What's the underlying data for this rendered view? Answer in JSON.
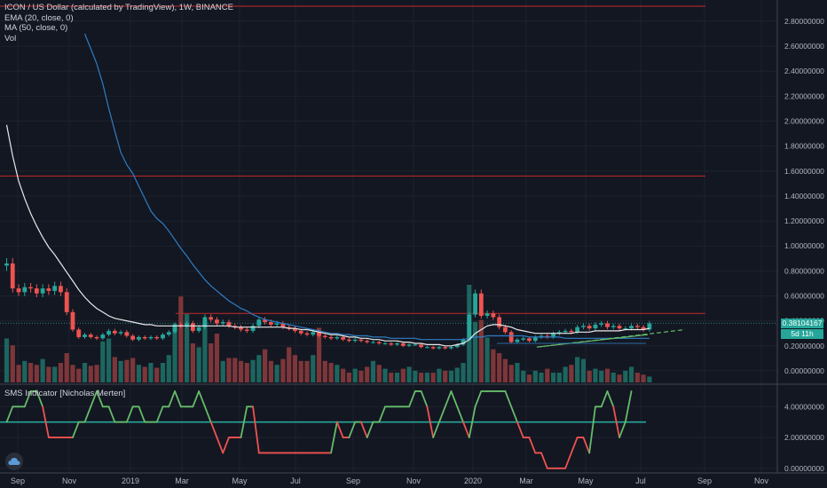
{
  "legend": {
    "title": "ICON / US Dollar (calculated by TradingView), 1W, BINANCE",
    "ema": "EMA (20, close, 0)",
    "ma": "MA (50, close, 0)",
    "vol": "Vol"
  },
  "sms_legend": "SMS Indicator [Nicholas Merten]",
  "price_badge": "0.38104167",
  "countdown_badge": "5d 11h",
  "colors": {
    "background": "#131722",
    "up": "#26a69a",
    "down": "#ef5350",
    "ema": "#e8e8e8",
    "ma": "#2e7dc4",
    "resistance": "#c62828",
    "trendline": "#66bb6a",
    "sms_up": "#66bb6a",
    "sms_down": "#ef5350",
    "sms_mid": "#26a69a"
  },
  "icons": {
    "logo": "tradingview-cloud-icon"
  },
  "chart_data": [
    {
      "type": "candlestick",
      "title": "ICON / US Dollar (calculated by TradingView), 1W, BINANCE",
      "x_ticks": [
        "Sep",
        "Nov",
        "2019",
        "Mar",
        "May",
        "Jul",
        "Sep",
        "Nov",
        "2020",
        "Mar",
        "May",
        "Jul",
        "Sep",
        "Nov"
      ],
      "y_ticks": [
        "2.80000000",
        "2.60000000",
        "2.40000000",
        "2.20000000",
        "2.00000000",
        "1.80000000",
        "1.60000000",
        "1.40000000",
        "1.20000000",
        "1.00000000",
        "0.80000000",
        "0.60000000",
        "0.40000000",
        "0.20000000",
        "0.00000000"
      ],
      "ylim": [
        -0.1,
        2.97
      ],
      "horizontal_lines": [
        2.92,
        1.56,
        0.46
      ],
      "last_price": 0.38104167,
      "close": [
        0.86,
        0.66,
        0.63,
        0.67,
        0.66,
        0.62,
        0.66,
        0.64,
        0.68,
        0.63,
        0.47,
        0.33,
        0.27,
        0.29,
        0.27,
        0.26,
        0.29,
        0.32,
        0.3,
        0.31,
        0.28,
        0.25,
        0.27,
        0.26,
        0.27,
        0.26,
        0.29,
        0.31,
        0.37,
        0.36,
        0.38,
        0.32,
        0.35,
        0.43,
        0.41,
        0.38,
        0.39,
        0.36,
        0.35,
        0.33,
        0.32,
        0.36,
        0.41,
        0.39,
        0.37,
        0.38,
        0.35,
        0.34,
        0.32,
        0.3,
        0.29,
        0.31,
        0.28,
        0.27,
        0.26,
        0.27,
        0.25,
        0.24,
        0.25,
        0.24,
        0.23,
        0.23,
        0.22,
        0.22,
        0.21,
        0.22,
        0.2,
        0.21,
        0.21,
        0.19,
        0.19,
        0.18,
        0.19,
        0.18,
        0.19,
        0.21,
        0.25,
        0.45,
        0.62,
        0.44,
        0.46,
        0.43,
        0.35,
        0.31,
        0.23,
        0.25,
        0.26,
        0.24,
        0.27,
        0.28,
        0.27,
        0.3,
        0.31,
        0.32,
        0.31,
        0.35,
        0.36,
        0.34,
        0.37,
        0.38,
        0.35,
        0.36,
        0.34,
        0.34,
        0.36,
        0.35,
        0.33,
        0.38
      ],
      "ema20": [
        1.97,
        1.72,
        1.52,
        1.38,
        1.26,
        1.16,
        1.07,
        0.99,
        0.93,
        0.86,
        0.79,
        0.72,
        0.65,
        0.59,
        0.54,
        0.5,
        0.47,
        0.44,
        0.42,
        0.41,
        0.4,
        0.39,
        0.38,
        0.37,
        0.37,
        0.36,
        0.36,
        0.36,
        0.36,
        0.36,
        0.36,
        0.36,
        0.36,
        0.36,
        0.36,
        0.36,
        0.36,
        0.36,
        0.35,
        0.35,
        0.35,
        0.35,
        0.35,
        0.35,
        0.35,
        0.35,
        0.35,
        0.34,
        0.34,
        0.33,
        0.33,
        0.32,
        0.31,
        0.3,
        0.29,
        0.29,
        0.28,
        0.27,
        0.27,
        0.26,
        0.26,
        0.25,
        0.25,
        0.24,
        0.24,
        0.24,
        0.23,
        0.23,
        0.22,
        0.22,
        0.21,
        0.21,
        0.21,
        0.2,
        0.2,
        0.21,
        0.22,
        0.25,
        0.3,
        0.33,
        0.36,
        0.37,
        0.37,
        0.36,
        0.35,
        0.33,
        0.32,
        0.31,
        0.3,
        0.3,
        0.3,
        0.3,
        0.3,
        0.3,
        0.3,
        0.31,
        0.31,
        0.31,
        0.32,
        0.32,
        0.32,
        0.32,
        0.32,
        0.33,
        0.33,
        0.33,
        0.33,
        0.34
      ],
      "ma50": [
        null,
        null,
        null,
        null,
        null,
        null,
        null,
        null,
        null,
        null,
        null,
        null,
        null,
        2.7,
        2.58,
        2.46,
        2.3,
        2.1,
        1.92,
        1.75,
        1.65,
        1.58,
        1.48,
        1.38,
        1.28,
        1.22,
        1.18,
        1.12,
        1.05,
        0.98,
        0.92,
        0.85,
        0.79,
        0.73,
        0.68,
        0.64,
        0.6,
        0.56,
        0.53,
        0.5,
        0.48,
        0.45,
        0.43,
        0.41,
        0.4,
        0.39,
        0.38,
        0.37,
        0.36,
        0.35,
        0.34,
        0.33,
        0.32,
        0.31,
        0.3,
        0.3,
        0.29,
        0.29,
        0.28,
        0.28,
        0.28,
        0.27,
        0.27,
        0.27,
        0.26,
        0.26,
        0.26,
        0.26,
        0.26,
        0.25,
        0.25,
        0.25,
        0.25,
        0.25,
        0.25,
        0.25,
        0.25,
        0.26,
        0.27,
        0.27,
        0.28,
        0.28,
        0.28,
        0.28,
        0.28,
        0.28,
        0.28,
        0.27,
        0.27,
        0.27,
        0.27,
        0.27,
        0.27,
        0.26,
        0.26,
        0.26,
        0.26,
        0.26,
        0.26,
        0.26,
        0.26,
        0.26,
        0.26,
        0.26,
        0.26,
        0.26,
        0.26,
        0.26
      ],
      "volume": [
        0.45,
        0.38,
        0.18,
        0.22,
        0.2,
        0.18,
        0.24,
        0.16,
        0.16,
        0.2,
        0.3,
        0.18,
        0.14,
        0.2,
        0.17,
        0.18,
        0.42,
        0.45,
        0.26,
        0.22,
        0.23,
        0.25,
        0.18,
        0.16,
        0.2,
        0.15,
        0.2,
        0.28,
        0.6,
        0.88,
        0.7,
        0.4,
        0.36,
        0.62,
        0.4,
        0.5,
        0.22,
        0.25,
        0.25,
        0.22,
        0.2,
        0.23,
        0.28,
        0.34,
        0.22,
        0.18,
        0.24,
        0.36,
        0.28,
        0.22,
        0.22,
        0.28,
        0.56,
        0.22,
        0.2,
        0.18,
        0.14,
        0.1,
        0.14,
        0.12,
        0.16,
        0.22,
        0.18,
        0.14,
        0.1,
        0.1,
        0.14,
        0.16,
        0.12,
        0.1,
        0.1,
        0.1,
        0.14,
        0.12,
        0.12,
        0.15,
        0.2,
        1.0,
        0.62,
        0.64,
        0.46,
        0.34,
        0.3,
        0.24,
        0.18,
        0.2,
        0.12,
        0.08,
        0.12,
        0.1,
        0.14,
        0.1,
        0.1,
        0.16,
        0.18,
        0.26,
        0.24,
        0.12,
        0.14,
        0.12,
        0.14,
        0.1,
        0.08,
        0.12,
        0.16,
        0.1,
        0.08,
        0.06
      ]
    },
    {
      "type": "line",
      "title": "SMS Indicator [Nicholas Merten]",
      "y_ticks": [
        "4.00000000",
        "2.00000000",
        "0.00000000"
      ],
      "ylim": [
        -0.3,
        5.4
      ],
      "midline": 3,
      "values": [
        3,
        4,
        4,
        4,
        5,
        5,
        4,
        2,
        2,
        2,
        2,
        2,
        3,
        3,
        4,
        5,
        4,
        4,
        3,
        3,
        3,
        4,
        4,
        3,
        3,
        3,
        4,
        4,
        5,
        4,
        4,
        4,
        5,
        4,
        3,
        2,
        1,
        2,
        2,
        2,
        4,
        4,
        1,
        1,
        1,
        1,
        1,
        1,
        1,
        1,
        1,
        1,
        1,
        1,
        1,
        3,
        2,
        2,
        3,
        3,
        2,
        3,
        3,
        4,
        4,
        4,
        4,
        4,
        5,
        5,
        4,
        2,
        3,
        4,
        5,
        4,
        3,
        2,
        4,
        5,
        5,
        5,
        5,
        5,
        4,
        3,
        2,
        2,
        1,
        1,
        0,
        0,
        0,
        0,
        1,
        2,
        2,
        1,
        4,
        4,
        5,
        4,
        2,
        3,
        5
      ]
    }
  ]
}
